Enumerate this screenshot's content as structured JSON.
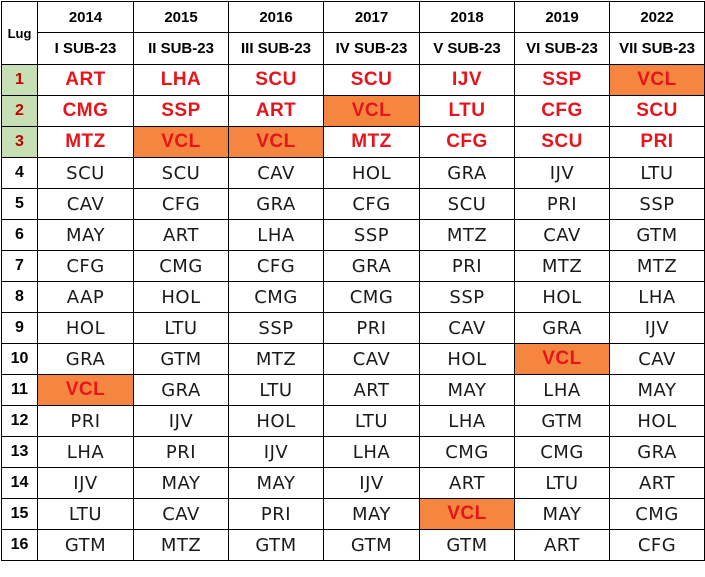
{
  "header": {
    "lug_label": "Lug",
    "years": [
      "2014",
      "2015",
      "2016",
      "2017",
      "2018",
      "2019",
      "2022"
    ],
    "editions": [
      "I SUB-23",
      "II SUB-23",
      "III SUB-23",
      "IV SUB-23",
      "V SUB-23",
      "VI SUB-23",
      "VII SUB-23"
    ]
  },
  "highlight_team": "VCL",
  "colors": {
    "highlight_fill": "#f58640",
    "podium_position_fill": "#c6e0b4",
    "podium_text": "#e8141b"
  },
  "rows": [
    {
      "pos": "1",
      "teams": [
        "ART",
        "LHA",
        "SCU",
        "SCU",
        "IJV",
        "SSP",
        "VCL"
      ]
    },
    {
      "pos": "2",
      "teams": [
        "CMG",
        "SSP",
        "ART",
        "VCL",
        "LTU",
        "CFG",
        "SCU"
      ]
    },
    {
      "pos": "3",
      "teams": [
        "MTZ",
        "VCL",
        "VCL",
        "MTZ",
        "CFG",
        "SCU",
        "PRI"
      ]
    },
    {
      "pos": "4",
      "teams": [
        "SCU",
        "SCU",
        "CAV",
        "HOL",
        "GRA",
        "IJV",
        "LTU"
      ]
    },
    {
      "pos": "5",
      "teams": [
        "CAV",
        "CFG",
        "GRA",
        "CFG",
        "SCU",
        "PRI",
        "SSP"
      ]
    },
    {
      "pos": "6",
      "teams": [
        "MAY",
        "ART",
        "LHA",
        "SSP",
        "MTZ",
        "CAV",
        "GTM"
      ]
    },
    {
      "pos": "7",
      "teams": [
        "CFG",
        "CMG",
        "CFG",
        "GRA",
        "PRI",
        "MTZ",
        "MTZ"
      ]
    },
    {
      "pos": "8",
      "teams": [
        "AAP",
        "HOL",
        "CMG",
        "CMG",
        "SSP",
        "HOL",
        "LHA"
      ]
    },
    {
      "pos": "9",
      "teams": [
        "HOL",
        "LTU",
        "SSP",
        "PRI",
        "CAV",
        "GRA",
        "IJV"
      ]
    },
    {
      "pos": "10",
      "teams": [
        "GRA",
        "GTM",
        "MTZ",
        "CAV",
        "HOL",
        "VCL",
        "CAV"
      ]
    },
    {
      "pos": "11",
      "teams": [
        "VCL",
        "GRA",
        "LTU",
        "ART",
        "MAY",
        "LHA",
        "MAY"
      ]
    },
    {
      "pos": "12",
      "teams": [
        "PRI",
        "IJV",
        "HOL",
        "LTU",
        "LHA",
        "GTM",
        "HOL"
      ]
    },
    {
      "pos": "13",
      "teams": [
        "LHA",
        "PRI",
        "IJV",
        "LHA",
        "CMG",
        "CMG",
        "GRA"
      ]
    },
    {
      "pos": "14",
      "teams": [
        "IJV",
        "MAY",
        "MAY",
        "IJV",
        "ART",
        "LTU",
        "ART"
      ]
    },
    {
      "pos": "15",
      "teams": [
        "LTU",
        "CAV",
        "PRI",
        "MAY",
        "VCL",
        "MAY",
        "CMG"
      ]
    },
    {
      "pos": "16",
      "teams": [
        "GTM",
        "MTZ",
        "GTM",
        "GTM",
        "GTM",
        "ART",
        "CFG"
      ]
    }
  ]
}
